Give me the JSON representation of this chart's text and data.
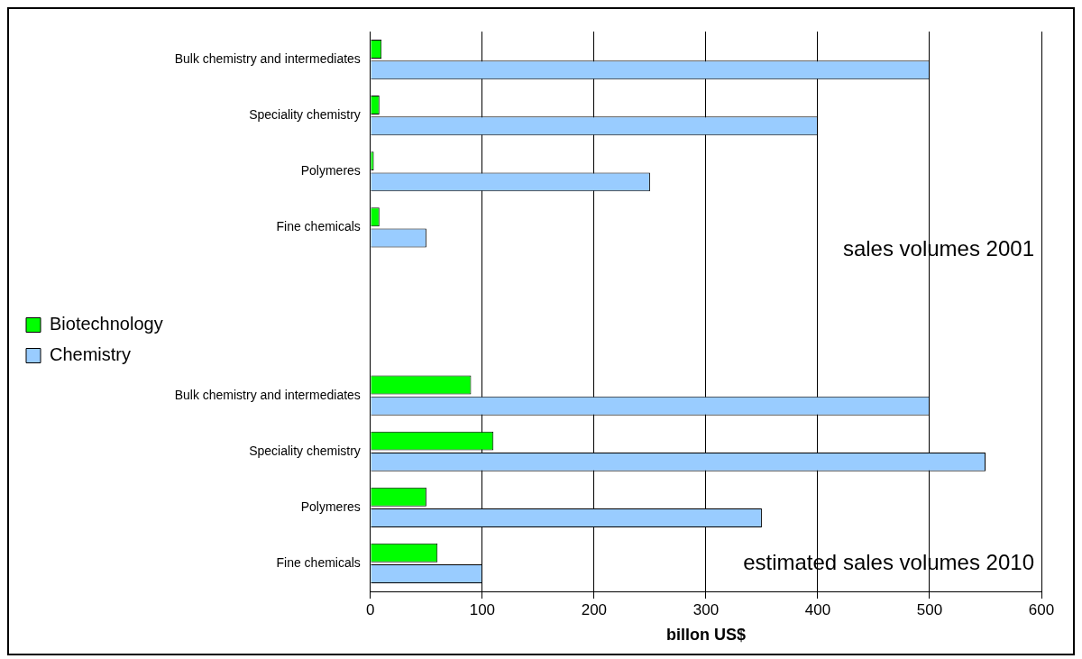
{
  "chart_data": {
    "type": "bar",
    "orientation": "horizontal",
    "xlabel": "billon US$",
    "categories": [
      "Bulk chemistry and intermediates",
      "Speciality chemistry",
      "Polymeres",
      "Fine chemicals",
      null,
      null,
      "Bulk chemistry and intermediates",
      "Speciality chemistry",
      "Polymeres",
      "Fine chemicals"
    ],
    "series": [
      {
        "name": "Biotechnology",
        "color": "#00ff00",
        "values": [
          10,
          8,
          3,
          8,
          null,
          null,
          90,
          110,
          50,
          60
        ]
      },
      {
        "name": "Chemistry",
        "color": "#99ccff",
        "values": [
          500,
          400,
          250,
          50,
          null,
          null,
          500,
          550,
          350,
          100
        ]
      }
    ],
    "xlim": [
      0,
      600
    ],
    "xticks": [
      0,
      100,
      200,
      300,
      400,
      500,
      600
    ],
    "grid": "x",
    "legend": "left",
    "annotations": [
      "sales volumes 2001",
      "estimated sales volumes 2010"
    ]
  }
}
